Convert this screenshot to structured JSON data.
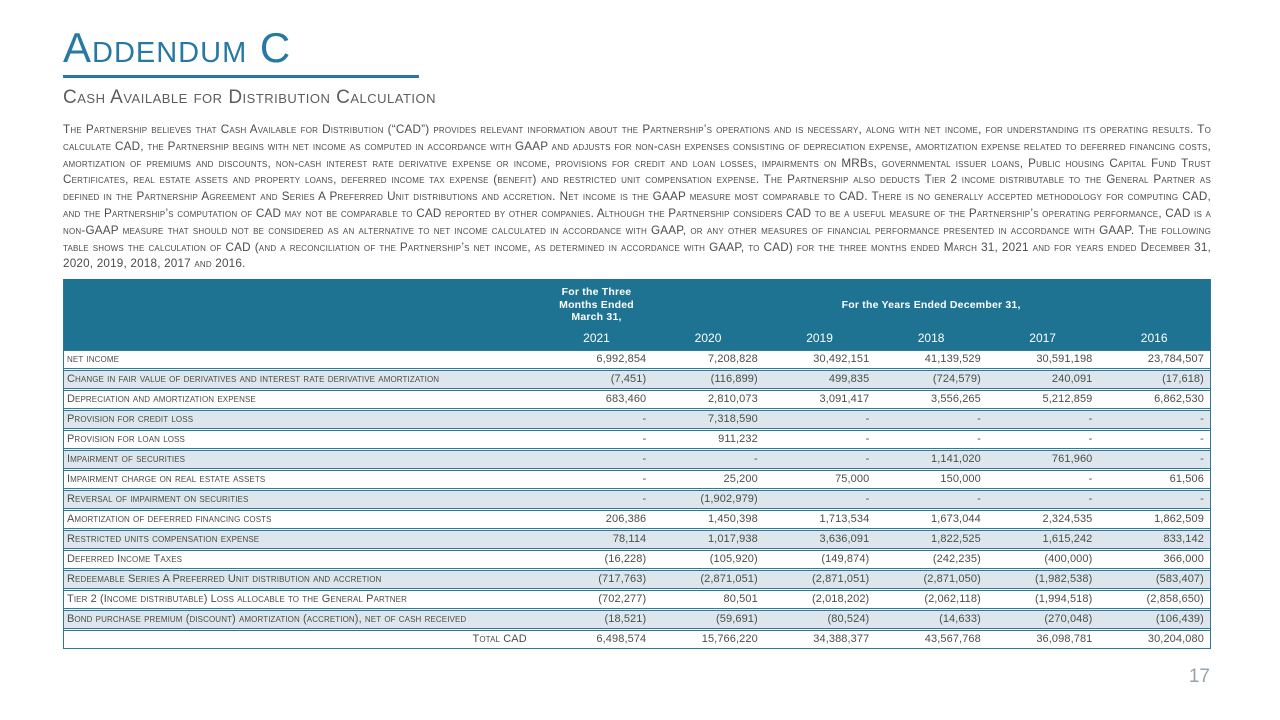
{
  "slide": {
    "title": "Addendum C",
    "subtitle": "Cash Available for Distribution Calculation",
    "intro": "The Partnership believes that Cash Available for Distribution (“CAD”) provides relevant information about the Partnership’s operations and is necessary, along with net income, for understanding its operating results. To calculate CAD, the Partnership begins with net income as computed in accordance with GAAP and adjusts for non-cash expenses consisting of depreciation expense, amortization expense related to deferred financing costs, amortization of premiums and discounts, non-cash interest rate derivative expense or income, provisions for credit and loan losses, impairments on MRBs, governmental issuer loans, Public housing Capital Fund Trust Certificates, real estate assets and property loans, deferred income tax expense (benefit) and restricted unit compensation expense. The Partnership also deducts Tier 2 income distributable to the General Partner as defined in the Partnership Agreement and Series A Preferred Unit distributions and accretion. Net income is the GAAP measure most comparable to CAD. There is no generally accepted methodology for computing CAD, and the Partnership’s computation of CAD may not be comparable to CAD reported by other companies. Although the Partnership considers CAD to be a useful measure of the Partnership’s operating performance, CAD is a non-GAAP measure that should not be considered as an alternative to net income calculated in accordance with GAAP, or any other measures of financial performance presented in accordance with GAAP.  The following table shows the calculation of CAD (and a reconciliation of the Partnership’s net income, as determined in accordance with GAAP, to CAD) for the three months ended March 31, 2021 and for years ended December 31, 2020, 2019, 2018, 2017 and 2016.",
    "page_number": "17"
  },
  "colors": {
    "accent_teal": "#1F7392",
    "row_border_teal": "#2C7B9C",
    "shaded_row": "#DCE6EC",
    "title_teal": "#2779A3"
  },
  "table": {
    "header": {
      "quarter_lines": [
        "For the Three",
        "Months Ended",
        "March 31,"
      ],
      "years_label": "For the Years Ended December 31,",
      "columns": [
        "2021",
        "2020",
        "2019",
        "2018",
        "2017",
        "2016"
      ]
    },
    "rows": [
      {
        "label": "net income",
        "values": [
          "6,992,854",
          "7,208,828",
          "30,492,151",
          "41,139,529",
          "30,591,198",
          "23,784,507"
        ]
      },
      {
        "label": "Change in fair value of derivatives and interest rate derivative amortization",
        "values": [
          "(7,451)",
          "(116,899)",
          "499,835",
          "(724,579)",
          "240,091",
          "(17,618)"
        ]
      },
      {
        "label": "Depreciation and amortization expense",
        "values": [
          "683,460",
          "2,810,073",
          "3,091,417",
          "3,556,265",
          "5,212,859",
          "6,862,530"
        ]
      },
      {
        "label": "Provision for credit loss",
        "values": [
          "-",
          "7,318,590",
          "-",
          "-",
          "-",
          "-"
        ]
      },
      {
        "label": "Provision for loan loss",
        "values": [
          "-",
          "911,232",
          "-",
          "-",
          "-",
          "-"
        ]
      },
      {
        "label": "Impairment of securities",
        "values": [
          "-",
          "-",
          "-",
          "1,141,020",
          "761,960",
          "-"
        ]
      },
      {
        "label": "Impairment charge on real estate assets",
        "values": [
          "-",
          "25,200",
          "75,000",
          "150,000",
          "-",
          "61,506"
        ]
      },
      {
        "label": "Reversal of impairment on securities",
        "values": [
          "-",
          "(1,902,979)",
          "-",
          "-",
          "-",
          "-"
        ]
      },
      {
        "label": "Amortization of deferred financing costs",
        "values": [
          "206,386",
          "1,450,398",
          "1,713,534",
          "1,673,044",
          "2,324,535",
          "1,862,509"
        ]
      },
      {
        "label": "Restricted units compensation expense",
        "values": [
          "78,114",
          "1,017,938",
          "3,636,091",
          "1,822,525",
          "1,615,242",
          "833,142"
        ]
      },
      {
        "label": "Deferred Income Taxes",
        "values": [
          "(16,228)",
          "(105,920)",
          "(149,874)",
          "(242,235)",
          "(400,000)",
          "366,000"
        ]
      },
      {
        "label": "Redeemable Series A Preferred Unit distribution and accretion",
        "values": [
          "(717,763)",
          "(2,871,051)",
          "(2,871,051)",
          "(2,871,050)",
          "(1,982,538)",
          "(583,407)"
        ]
      },
      {
        "label": "Tier 2 (Income distributable) Loss allocable to the General Partner",
        "values": [
          "(702,277)",
          "80,501",
          "(2,018,202)",
          "(2,062,118)",
          "(1,994,518)",
          "(2,858,650)"
        ]
      },
      {
        "label": "Bond purchase premium (discount) amortization (accretion), net of cash received",
        "values": [
          "(18,521)",
          "(59,691)",
          "(80,524)",
          "(14,633)",
          "(270,048)",
          "(106,439)"
        ]
      }
    ],
    "total": {
      "label": "Total CAD",
      "values": [
        "6,498,574",
        "15,766,220",
        "34,388,377",
        "43,567,768",
        "36,098,781",
        "30,204,080"
      ]
    }
  }
}
